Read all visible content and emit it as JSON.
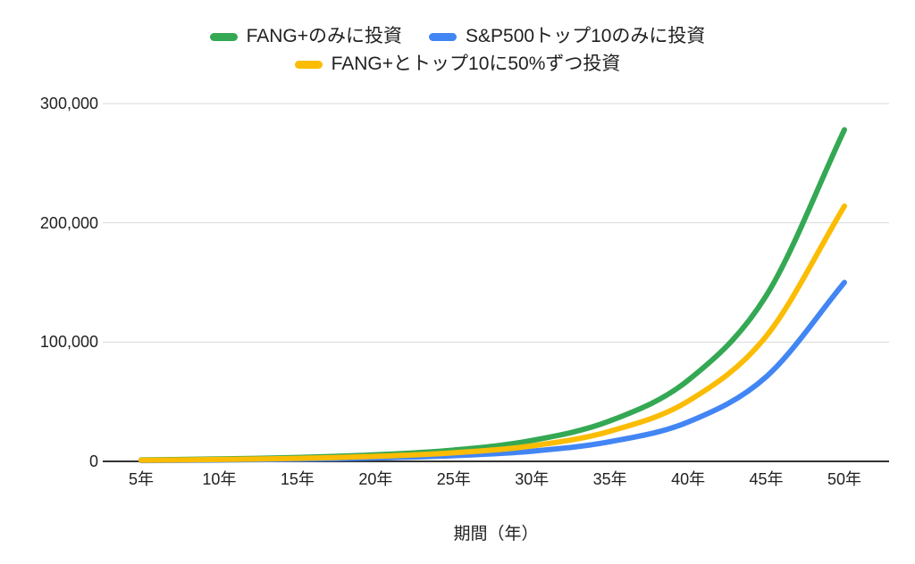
{
  "colors": {
    "background": "#ffffff",
    "grid": "#d9d9d9",
    "axis_line": "#333333",
    "text": "#212121",
    "series_green": "#34a853",
    "series_blue": "#4285f4",
    "series_yellow": "#fbbc04"
  },
  "chart_data": {
    "type": "line",
    "title": "",
    "xlabel": "期間（年）",
    "ylabel": "",
    "legend_position": "top",
    "grid": "horizontal-only",
    "x_years": [
      5,
      10,
      15,
      20,
      25,
      30,
      35,
      40,
      45,
      50
    ],
    "x_tick_labels": [
      "5年",
      "10年",
      "15年",
      "20年",
      "25年",
      "30年",
      "35年",
      "40年",
      "45年",
      "50年"
    ],
    "y_ticks": [
      0,
      100000,
      200000,
      300000
    ],
    "y_tick_labels": [
      "0",
      "100,000",
      "200,000",
      "300,000"
    ],
    "ylim": [
      0,
      300000
    ],
    "xlim_years": [
      5,
      50
    ],
    "series": [
      {
        "name": "FANG+のみに投資",
        "color": "#34a853",
        "values": [
          1200,
          2000,
          3300,
          5500,
          9500,
          17500,
          34000,
          68000,
          139000,
          278000
        ]
      },
      {
        "name": "S&P500トップ10のみに投資",
        "color": "#4285f4",
        "values": [
          700,
          1100,
          1800,
          2900,
          4800,
          8500,
          16500,
          33000,
          71000,
          150000
        ]
      },
      {
        "name": "FANG+とトップ10に50%ずつ投資",
        "color": "#fbbc04",
        "values": [
          950,
          1550,
          2550,
          4200,
          7150,
          13000,
          25250,
          50500,
          105000,
          214000
        ]
      }
    ]
  }
}
